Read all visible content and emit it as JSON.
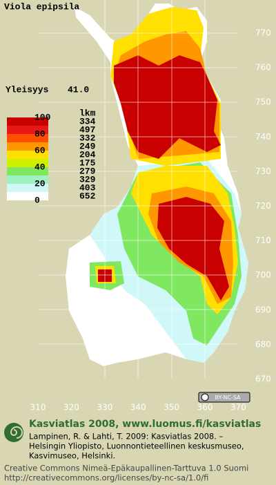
{
  "title": "Viola epipsila",
  "frequency": {
    "label": "Yleisyys",
    "value": "41.0"
  },
  "legend": {
    "count_header": "lkm",
    "scale_labels": [
      "100",
      "80",
      "60",
      "40",
      "20",
      "0"
    ],
    "colors": [
      "#c80000",
      "#e81818",
      "#ff5000",
      "#ff9800",
      "#ffe000",
      "#d0f000",
      "#80e860",
      "#a0f0c0",
      "#d0f8f8",
      "#ffffff"
    ],
    "counts": [
      "334",
      "497",
      "332",
      "249",
      "204",
      "175",
      "279",
      "329",
      "403",
      "652"
    ]
  },
  "grid": {
    "x_labels": [
      "310",
      "320",
      "330",
      "340",
      "350",
      "360",
      "370"
    ],
    "y_labels": [
      "770",
      "760",
      "750",
      "740",
      "730",
      "720",
      "710",
      "700",
      "690",
      "680",
      "670"
    ]
  },
  "license_badge": "BY-NC-SA",
  "footer": {
    "heading": "Kasviatlas 2008, www.luomus.fi/kasviatlas",
    "citation": [
      "Lampinen, R. & Lahti, T. 2009: Kasviatlas 2008. –",
      "Helsingin Yliopisto, Luonnontieteellinen keskusmuseo,",
      "Kasvimuseo, Helsinki."
    ],
    "license": [
      "Creative Commons Nimeä-Epäkaupallinen-Tarttuva 1.0 Suomi",
      "http://creativecommons.org/licenses/by-nc-sa/1.0/fi"
    ]
  }
}
